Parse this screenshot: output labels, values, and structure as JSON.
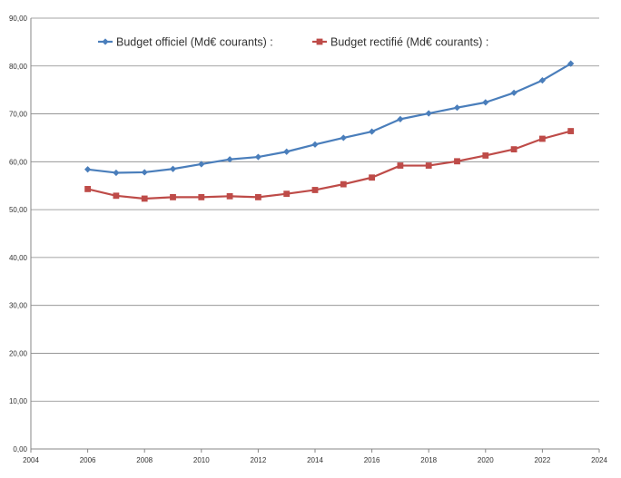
{
  "chart_data": {
    "type": "line",
    "title": "",
    "xlabel": "",
    "ylabel": "",
    "xlim": [
      2004,
      2024
    ],
    "ylim": [
      0,
      90
    ],
    "x_ticks": [
      "2004",
      "2006",
      "2008",
      "2010",
      "2012",
      "2014",
      "2016",
      "2018",
      "2020",
      "2022",
      "2024"
    ],
    "y_ticks": [
      "0,00",
      "10,00",
      "20,00",
      "30,00",
      "40,00",
      "50,00",
      "60,00",
      "70,00",
      "80,00",
      "90,00"
    ],
    "grid": "horizontal",
    "legend_position": "top",
    "x": [
      2006,
      2007,
      2008,
      2009,
      2010,
      2011,
      2012,
      2013,
      2014,
      2015,
      2016,
      2017,
      2018,
      2019,
      2020,
      2021,
      2022,
      2023
    ],
    "series": [
      {
        "name": "Budget officiel (Md€ courants) :",
        "color": "#4a7ebb",
        "marker": "diamond",
        "values": [
          58.4,
          57.7,
          57.8,
          58.5,
          59.5,
          60.5,
          61.0,
          62.1,
          63.6,
          65.0,
          66.3,
          68.9,
          70.1,
          71.3,
          72.4,
          74.4,
          77.0,
          80.5
        ]
      },
      {
        "name": "Budget rectifié (Md€ courants) :",
        "color": "#be4b48",
        "marker": "square",
        "values": [
          54.3,
          52.9,
          52.3,
          52.6,
          52.6,
          52.8,
          52.6,
          53.3,
          54.1,
          55.3,
          56.7,
          59.2,
          59.2,
          60.1,
          61.3,
          62.6,
          64.8,
          66.4
        ]
      }
    ]
  }
}
